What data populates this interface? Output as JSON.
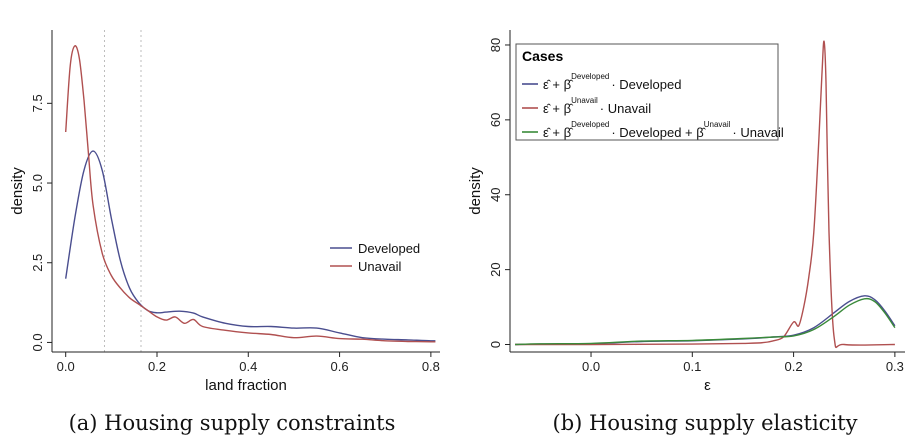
{
  "chart_data": [
    {
      "type": "line",
      "title": "",
      "caption": "(a) Housing supply constraints",
      "xlabel": "land fraction",
      "ylabel": "density",
      "xlim": [
        -0.03,
        0.82
      ],
      "ylim": [
        -0.3,
        9.8
      ],
      "xticks": [
        0.0,
        0.2,
        0.4,
        0.6,
        0.8
      ],
      "xtick_labels": [
        "0.0",
        "0.2",
        "0.4",
        "0.6",
        "0.8"
      ],
      "yticks": [
        0.0,
        2.5,
        5.0,
        7.5
      ],
      "ytick_labels": [
        "0.0",
        "2.5",
        "5.0",
        "7.5"
      ],
      "vlines": [
        0.085,
        0.165
      ],
      "grid": false,
      "legend": {
        "position": "right-center",
        "title": ""
      },
      "series": [
        {
          "name": "Developed",
          "color": "#4a4e8f",
          "x": [
            0.0,
            0.02,
            0.04,
            0.06,
            0.08,
            0.1,
            0.12,
            0.14,
            0.16,
            0.18,
            0.2,
            0.22,
            0.25,
            0.28,
            0.3,
            0.35,
            0.4,
            0.45,
            0.5,
            0.55,
            0.6,
            0.65,
            0.7,
            0.75,
            0.8,
            0.81
          ],
          "y": [
            2.0,
            3.9,
            5.4,
            6.0,
            5.4,
            3.9,
            2.55,
            1.7,
            1.25,
            1.0,
            0.93,
            0.95,
            0.98,
            0.92,
            0.8,
            0.6,
            0.5,
            0.5,
            0.45,
            0.45,
            0.3,
            0.15,
            0.1,
            0.08,
            0.05,
            0.05
          ]
        },
        {
          "name": "Unavail",
          "color": "#b05050",
          "x": [
            0.0,
            0.01,
            0.02,
            0.03,
            0.04,
            0.05,
            0.06,
            0.08,
            0.1,
            0.12,
            0.14,
            0.16,
            0.18,
            0.2,
            0.22,
            0.24,
            0.26,
            0.28,
            0.3,
            0.35,
            0.4,
            0.45,
            0.5,
            0.55,
            0.6,
            0.65,
            0.7,
            0.75,
            0.8,
            0.81
          ],
          "y": [
            6.6,
            8.7,
            9.3,
            8.9,
            7.6,
            5.9,
            4.3,
            2.8,
            2.1,
            1.7,
            1.4,
            1.2,
            1.0,
            0.8,
            0.7,
            0.8,
            0.6,
            0.72,
            0.5,
            0.38,
            0.3,
            0.25,
            0.15,
            0.2,
            0.12,
            0.1,
            0.05,
            0.03,
            0.02,
            0.02
          ]
        }
      ]
    },
    {
      "type": "line",
      "title": "",
      "caption": "(b) Housing supply elasticity",
      "xlabel": "ε",
      "ylabel": "density",
      "xlim": [
        -0.08,
        0.31
      ],
      "ylim": [
        -2,
        84
      ],
      "xticks": [
        0.0,
        0.1,
        0.2,
        0.3
      ],
      "xtick_labels": [
        "0.0",
        "0.1",
        "0.2",
        "0.3"
      ],
      "yticks": [
        0,
        20,
        40,
        60,
        80
      ],
      "ytick_labels": [
        "0",
        "20",
        "40",
        "60",
        "80"
      ],
      "grid": false,
      "legend": {
        "position": "top-left",
        "title": "Cases",
        "entries": [
          {
            "base": "ε̂ + β̂",
            "sup": "Developed",
            "tail": "· Developed",
            "sup2": "",
            "tail2": ""
          },
          {
            "base": "ε̂ + β̂",
            "sup": "Unavail",
            "tail": "· Unavail",
            "sup2": "",
            "tail2": ""
          },
          {
            "base": "ε̂ + β̂",
            "sup": "Developed",
            "tail": "· Developed + β̂",
            "sup2": "Unavail",
            "tail2": "· Unavail"
          }
        ]
      },
      "series": [
        {
          "color": "#4a4e8f",
          "x": [
            -0.075,
            -0.05,
            0.0,
            0.05,
            0.1,
            0.15,
            0.18,
            0.2,
            0.22,
            0.24,
            0.255,
            0.27,
            0.28,
            0.29,
            0.3
          ],
          "y": [
            0.0,
            0.1,
            0.2,
            0.8,
            1.0,
            1.5,
            2.0,
            2.5,
            4.5,
            8.5,
            11.5,
            13.0,
            12.0,
            9.0,
            5.0
          ]
        },
        {
          "color": "#b05050",
          "x": [
            -0.075,
            0.0,
            0.1,
            0.15,
            0.17,
            0.18,
            0.19,
            0.2,
            0.205,
            0.21,
            0.215,
            0.22,
            0.225,
            0.228,
            0.23,
            0.232,
            0.235,
            0.24,
            0.25,
            0.3
          ],
          "y": [
            0.0,
            0.0,
            0.1,
            0.3,
            0.5,
            1.0,
            2.0,
            6.0,
            5.0,
            10.0,
            18.0,
            30.0,
            55.0,
            72.0,
            81.0,
            70.0,
            30.0,
            2.0,
            0.0,
            0.0
          ]
        },
        {
          "color": "#3a8a3a",
          "x": [
            -0.075,
            -0.05,
            0.0,
            0.05,
            0.1,
            0.15,
            0.18,
            0.2,
            0.22,
            0.24,
            0.255,
            0.27,
            0.28,
            0.29,
            0.3
          ],
          "y": [
            0.0,
            0.2,
            0.3,
            0.9,
            1.1,
            1.6,
            2.0,
            2.3,
            4.0,
            7.5,
            10.5,
            12.2,
            11.5,
            8.5,
            4.5
          ]
        }
      ]
    }
  ]
}
